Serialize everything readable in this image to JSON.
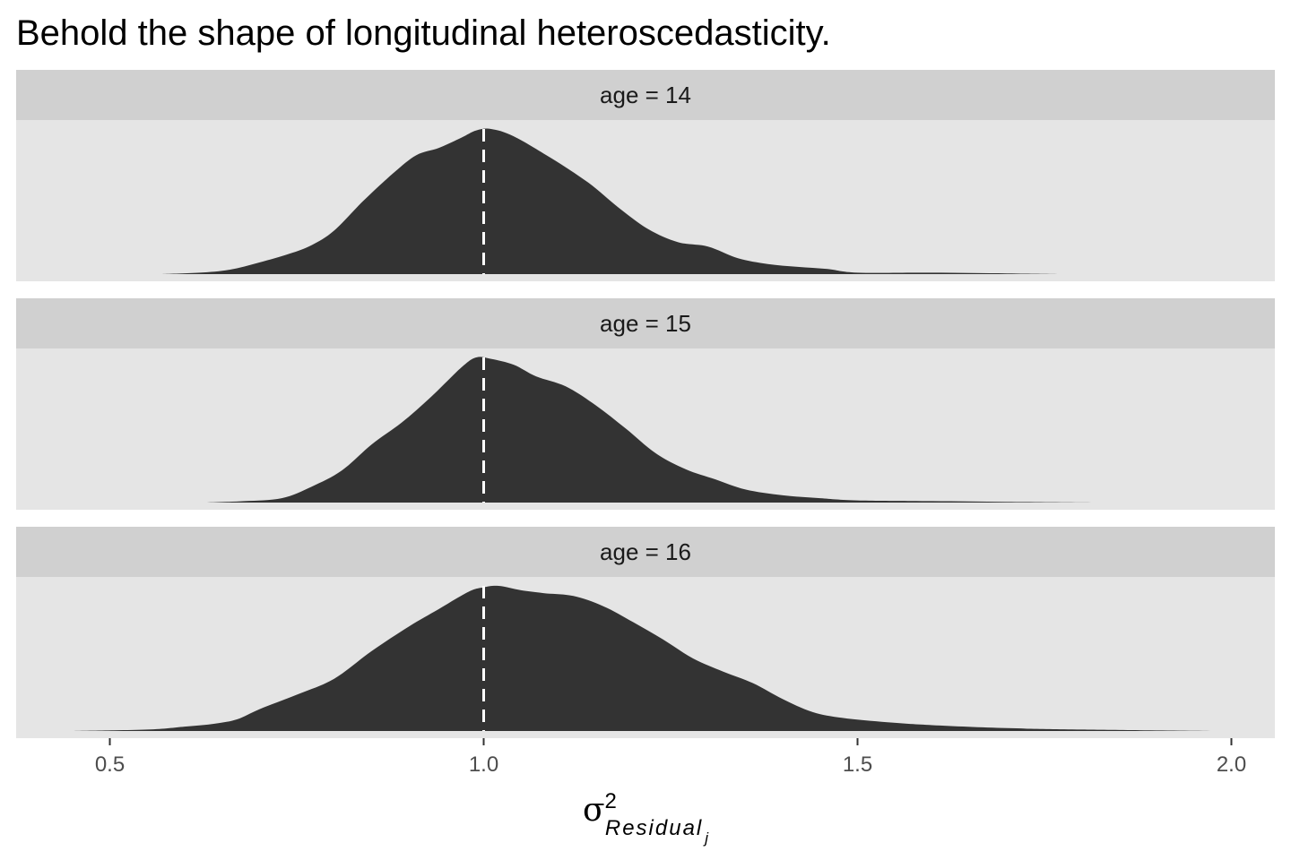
{
  "chart_data": {
    "type": "area",
    "title": "Behold the shape of longitudinal heteroscedasticity.",
    "facet_var": "age",
    "xlabel": {
      "symbol": "σ",
      "superscript": "2",
      "subscript": "Residual",
      "sub_subscript": "j"
    },
    "xlim": [
      0.44,
      2.06
    ],
    "x_ticks": [
      0.5,
      1.0,
      1.5,
      2.0
    ],
    "x_tick_labels": [
      "0.5",
      "1.0",
      "1.5",
      "2.0"
    ],
    "reference_line_x": 1.0,
    "colors": {
      "fill": "#333333",
      "panel_bg": "#e5e5e5",
      "strip_bg": "#d0d0d0",
      "reference_line": "#ffffff",
      "tick": "#333333"
    },
    "panels": [
      {
        "strip_label": "age = 14",
        "density": [
          [
            0.57,
            0.0
          ],
          [
            0.62,
            0.01
          ],
          [
            0.66,
            0.03
          ],
          [
            0.7,
            0.08
          ],
          [
            0.74,
            0.14
          ],
          [
            0.77,
            0.2
          ],
          [
            0.8,
            0.3
          ],
          [
            0.84,
            0.51
          ],
          [
            0.88,
            0.7
          ],
          [
            0.91,
            0.82
          ],
          [
            0.94,
            0.87
          ],
          [
            0.97,
            0.94
          ],
          [
            0.99,
            0.99
          ],
          [
            1.01,
            1.0
          ],
          [
            1.04,
            0.95
          ],
          [
            1.09,
            0.8
          ],
          [
            1.14,
            0.63
          ],
          [
            1.18,
            0.46
          ],
          [
            1.22,
            0.31
          ],
          [
            1.26,
            0.22
          ],
          [
            1.3,
            0.19
          ],
          [
            1.34,
            0.11
          ],
          [
            1.38,
            0.07
          ],
          [
            1.42,
            0.05
          ],
          [
            1.46,
            0.035
          ],
          [
            1.5,
            0.01
          ],
          [
            1.6,
            0.01
          ],
          [
            1.7,
            0.005
          ],
          [
            1.78,
            0.0
          ]
        ]
      },
      {
        "strip_label": "age = 15",
        "density": [
          [
            0.63,
            0.0
          ],
          [
            0.68,
            0.01
          ],
          [
            0.73,
            0.03
          ],
          [
            0.77,
            0.11
          ],
          [
            0.81,
            0.22
          ],
          [
            0.85,
            0.4
          ],
          [
            0.89,
            0.55
          ],
          [
            0.93,
            0.73
          ],
          [
            0.97,
            0.93
          ],
          [
            0.99,
            1.0
          ],
          [
            1.01,
            0.99
          ],
          [
            1.04,
            0.95
          ],
          [
            1.07,
            0.87
          ],
          [
            1.11,
            0.8
          ],
          [
            1.15,
            0.67
          ],
          [
            1.19,
            0.51
          ],
          [
            1.23,
            0.34
          ],
          [
            1.27,
            0.23
          ],
          [
            1.31,
            0.16
          ],
          [
            1.35,
            0.09
          ],
          [
            1.4,
            0.05
          ],
          [
            1.45,
            0.03
          ],
          [
            1.5,
            0.015
          ],
          [
            1.6,
            0.01
          ],
          [
            1.7,
            0.005
          ],
          [
            1.82,
            0.0
          ]
        ]
      },
      {
        "strip_label": "age = 16",
        "density": [
          [
            0.45,
            0.0
          ],
          [
            0.55,
            0.01
          ],
          [
            0.6,
            0.03
          ],
          [
            0.64,
            0.05
          ],
          [
            0.67,
            0.08
          ],
          [
            0.7,
            0.15
          ],
          [
            0.75,
            0.25
          ],
          [
            0.8,
            0.36
          ],
          [
            0.85,
            0.55
          ],
          [
            0.9,
            0.72
          ],
          [
            0.94,
            0.84
          ],
          [
            0.98,
            0.96
          ],
          [
            1.0,
            0.99
          ],
          [
            1.02,
            1.0
          ],
          [
            1.05,
            0.97
          ],
          [
            1.08,
            0.95
          ],
          [
            1.12,
            0.93
          ],
          [
            1.16,
            0.86
          ],
          [
            1.2,
            0.75
          ],
          [
            1.24,
            0.63
          ],
          [
            1.28,
            0.5
          ],
          [
            1.32,
            0.41
          ],
          [
            1.36,
            0.33
          ],
          [
            1.4,
            0.22
          ],
          [
            1.44,
            0.13
          ],
          [
            1.48,
            0.09
          ],
          [
            1.54,
            0.06
          ],
          [
            1.6,
            0.04
          ],
          [
            1.7,
            0.02
          ],
          [
            1.8,
            0.01
          ],
          [
            1.98,
            0.0
          ]
        ]
      }
    ]
  }
}
